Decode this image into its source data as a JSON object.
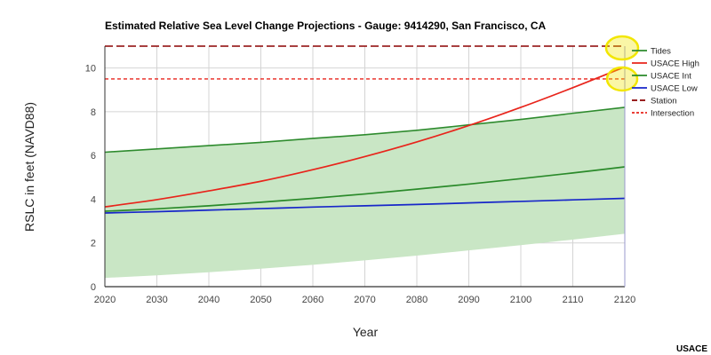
{
  "chart_data": {
    "type": "line",
    "title": "Estimated Relative Sea Level Change Projections - Gauge: 9414290, San Francisco, CA",
    "xlabel": "Year",
    "ylabel": "RSLC in feet (NAVD88)",
    "xlim": [
      2020,
      2120
    ],
    "ylim": [
      0,
      11
    ],
    "x_ticks": [
      2020,
      2030,
      2040,
      2050,
      2060,
      2070,
      2080,
      2090,
      2100,
      2110,
      2120
    ],
    "y_ticks": [
      0,
      2,
      4,
      6,
      8,
      10
    ],
    "grid": true,
    "legend_position": "right",
    "x": [
      2020,
      2030,
      2040,
      2050,
      2060,
      2070,
      2080,
      2090,
      2100,
      2110,
      2120
    ],
    "band": {
      "name": "Tides",
      "color": "#2e8b2e",
      "fill": "#c9e6c5",
      "upper": [
        6.15,
        6.3,
        6.45,
        6.6,
        6.78,
        6.95,
        7.15,
        7.4,
        7.65,
        7.93,
        8.2
      ],
      "lower": [
        0.4,
        0.52,
        0.66,
        0.82,
        1.0,
        1.2,
        1.42,
        1.66,
        1.9,
        2.15,
        2.42
      ]
    },
    "series": [
      {
        "name": "USACE High",
        "color": "#e8241b",
        "values": [
          3.65,
          3.98,
          4.38,
          4.82,
          5.35,
          5.95,
          6.62,
          7.37,
          8.2,
          9.1,
          10.05
        ]
      },
      {
        "name": "USACE Int",
        "color": "#2a8a2a",
        "values": [
          3.45,
          3.56,
          3.7,
          3.86,
          4.04,
          4.24,
          4.46,
          4.69,
          4.94,
          5.2,
          5.48
        ]
      },
      {
        "name": "USACE Low",
        "color": "#1726c9",
        "values": [
          3.37,
          3.43,
          3.5,
          3.57,
          3.64,
          3.7,
          3.76,
          3.83,
          3.9,
          3.97,
          4.04
        ]
      }
    ],
    "reference_lines": [
      {
        "name": "Station",
        "color": "#8b0000",
        "dash": "long",
        "value": 11.0
      },
      {
        "name": "Intersection",
        "color": "#e8241b",
        "dash": "short",
        "value": 9.5
      }
    ],
    "legend": [
      "Tides",
      "USACE High",
      "USACE Int",
      "USACE Low",
      "Station",
      "Intersection"
    ],
    "highlights": [
      {
        "color": "#f2e600",
        "target": "Station line at right edge"
      },
      {
        "color": "#f2e600",
        "target": "Intersection point at right edge"
      }
    ]
  },
  "credit": "USACE"
}
